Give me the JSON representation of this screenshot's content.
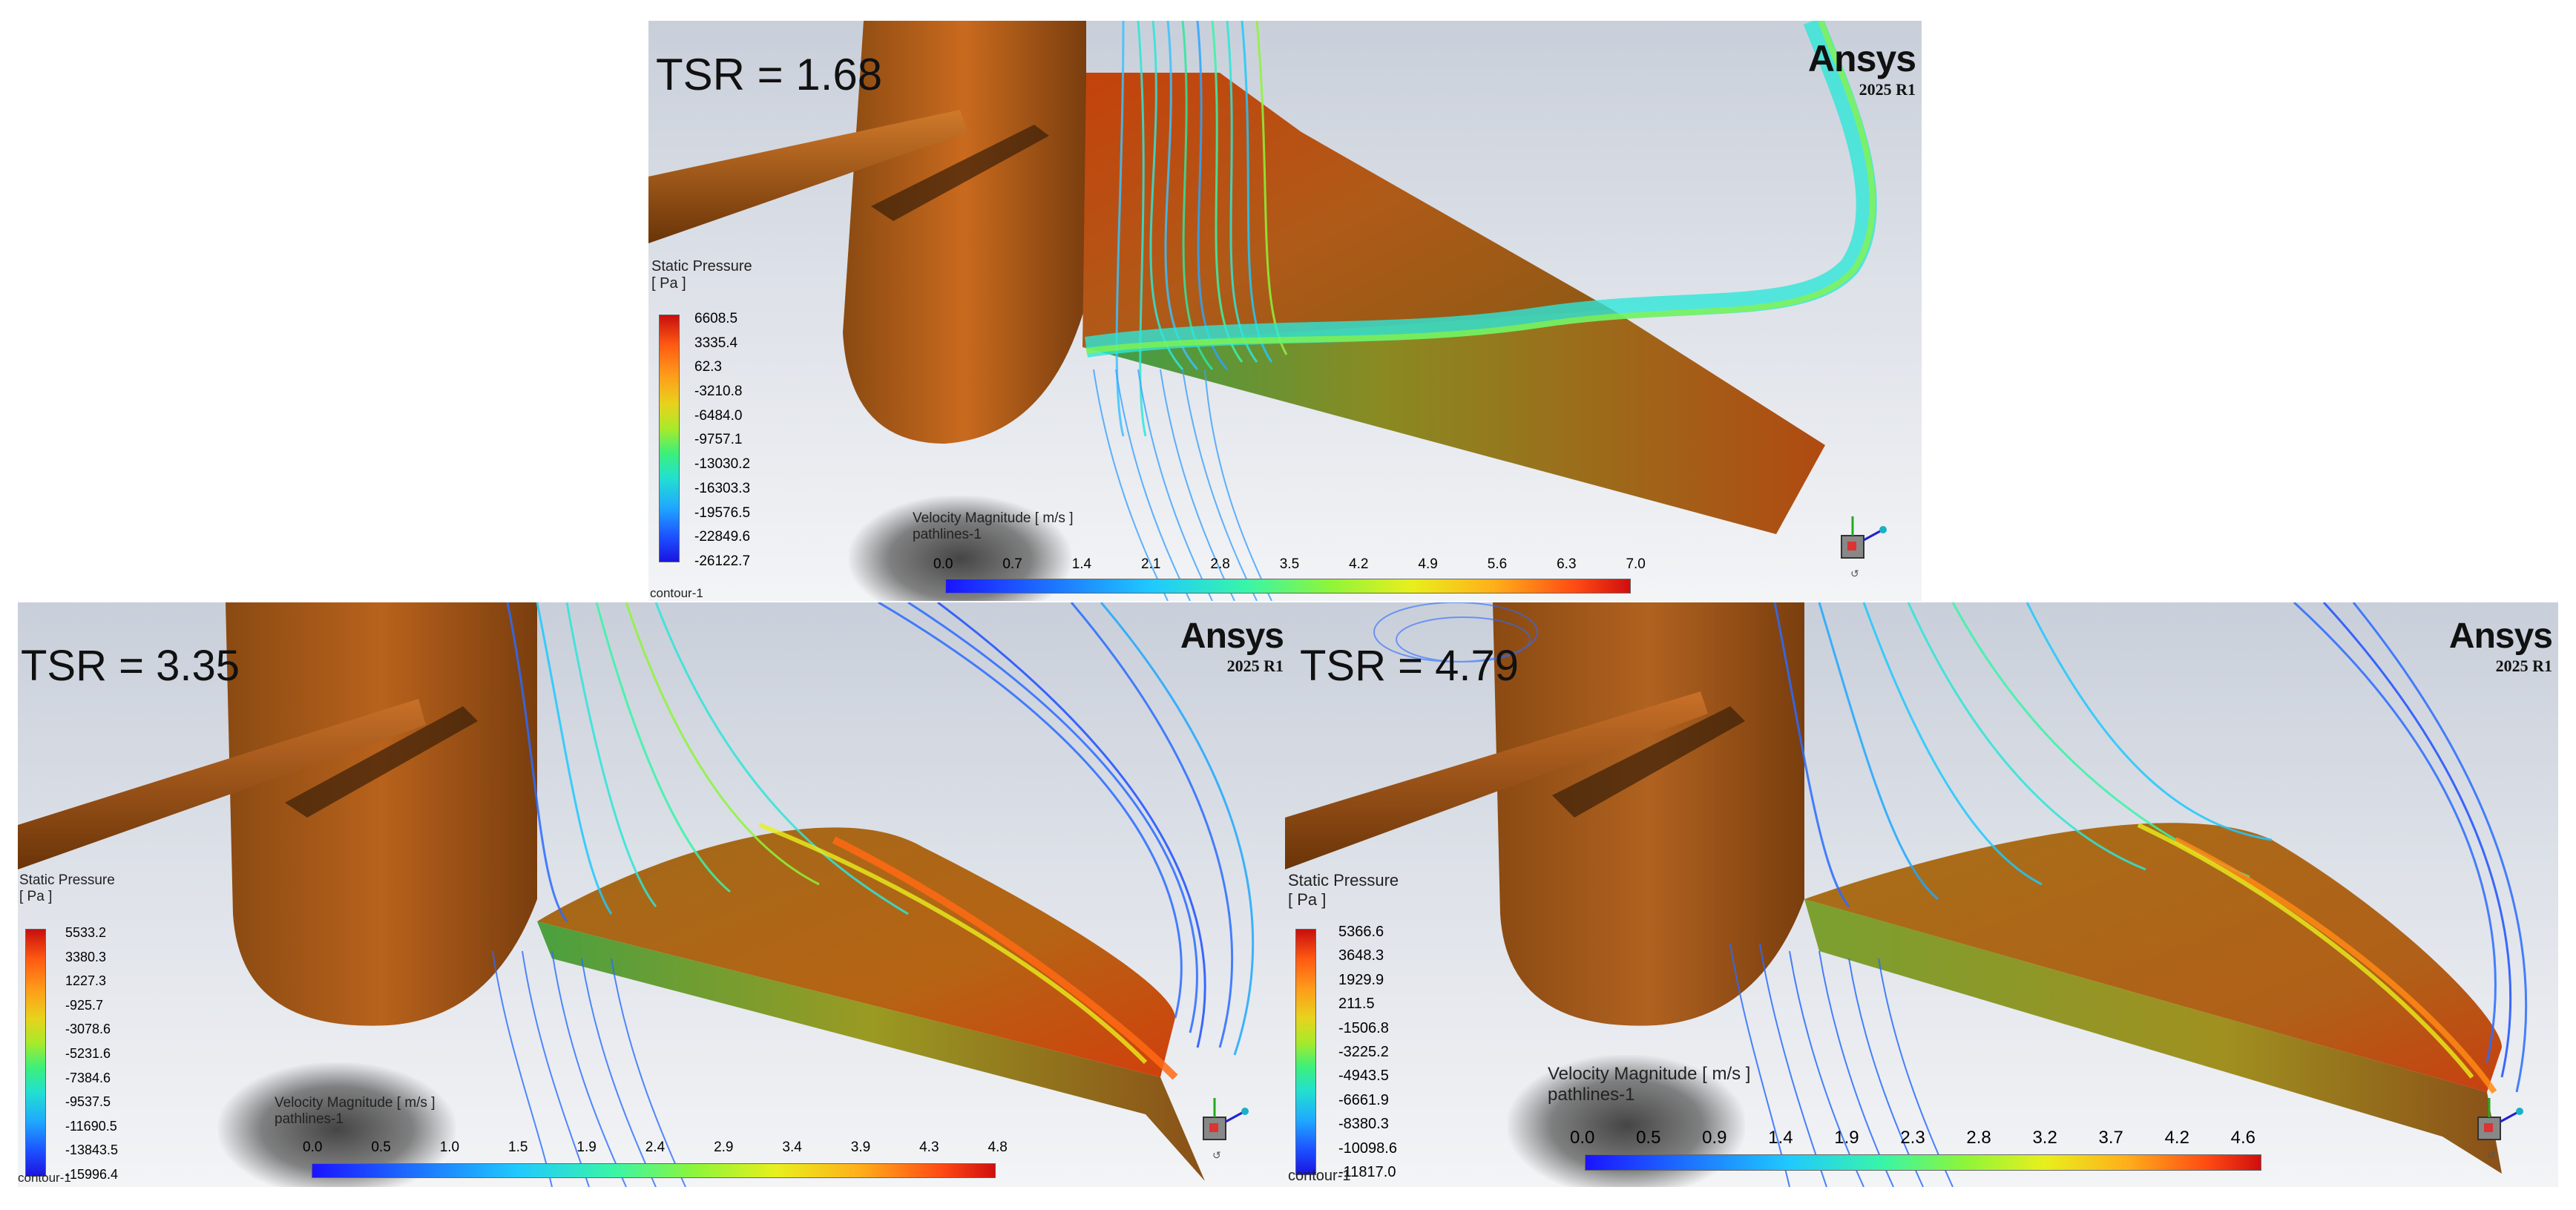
{
  "panels": {
    "top": {
      "tsr_label": "TSR = 1.68",
      "logo": {
        "brand": "Ansys",
        "version": "2025 R1"
      },
      "static_pressure": {
        "title": "Static Pressure",
        "unit": "[ Pa ]",
        "ticks": [
          "6608.5",
          "3335.4",
          "62.3",
          "-3210.8",
          "-6484.0",
          "-9757.1",
          "-13030.2",
          "-16303.3",
          "-19576.5",
          "-22849.6",
          "-26122.7"
        ]
      },
      "velocity": {
        "title": "Velocity Magnitude [ m/s ]",
        "subtitle": "pathlines-1",
        "ticks": [
          "0.0",
          "0.7",
          "1.4",
          "2.1",
          "2.8",
          "3.5",
          "4.2",
          "4.9",
          "5.6",
          "6.3",
          "7.0"
        ]
      },
      "contour_label": "contour-1"
    },
    "bottom_left": {
      "tsr_label": "TSR = 3.35",
      "logo": {
        "brand": "Ansys",
        "version": "2025 R1"
      },
      "static_pressure": {
        "title": "Static Pressure",
        "unit": "[ Pa ]",
        "ticks": [
          "5533.2",
          "3380.3",
          "1227.3",
          "-925.7",
          "-3078.6",
          "-5231.6",
          "-7384.6",
          "-9537.5",
          "-11690.5",
          "-13843.5",
          "-15996.4"
        ]
      },
      "velocity": {
        "title": "Velocity Magnitude [ m/s ]",
        "subtitle": "pathlines-1",
        "ticks": [
          "0.0",
          "0.5",
          "1.0",
          "1.5",
          "1.9",
          "2.4",
          "2.9",
          "3.4",
          "3.9",
          "4.3",
          "4.8"
        ]
      },
      "contour_label": "contour-1"
    },
    "bottom_right": {
      "tsr_label": "TSR = 4.79",
      "logo": {
        "brand": "Ansys",
        "version": "2025 R1"
      },
      "static_pressure": {
        "title": "Static Pressure",
        "unit": "[ Pa ]",
        "ticks": [
          "5366.6",
          "3648.3",
          "1929.9",
          "211.5",
          "-1506.8",
          "-3225.2",
          "-4943.5",
          "-6661.9",
          "-8380.3",
          "-10098.6",
          "-11817.0"
        ]
      },
      "velocity": {
        "title": "Velocity Magnitude [ m/s ]",
        "subtitle": "pathlines-1",
        "ticks": [
          "0.0",
          "0.5",
          "0.9",
          "1.4",
          "1.9",
          "2.3",
          "2.8",
          "3.2",
          "3.7",
          "4.2",
          "4.6"
        ]
      },
      "contour_label": "contour-1"
    }
  },
  "colors": {
    "hub": "#b8621c",
    "blade_high": "#c8400e",
    "blade_mid": "#a0a020",
    "pathline_low": "#2a5cff",
    "pathline_mid": "#2ee6d8"
  }
}
